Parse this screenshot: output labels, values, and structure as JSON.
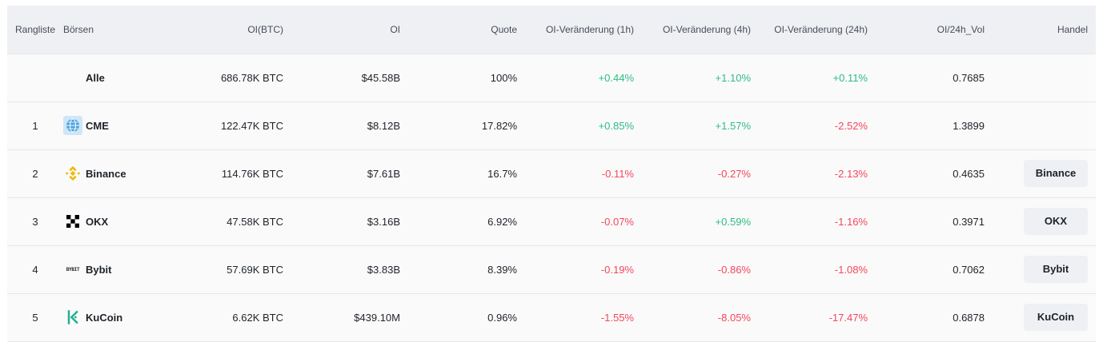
{
  "headers": {
    "rank": "Rangliste",
    "exchange": "Börsen",
    "oi_btc": "OI(BTC)",
    "oi": "OI",
    "share": "Quote",
    "chg_1h": "OI-Veränderung (1h)",
    "chg_4h": "OI-Veränderung (4h)",
    "chg_24h": "OI-Veränderung (24h)",
    "oi_vol": "OI/24h_Vol",
    "trade": "Handel"
  },
  "rows": [
    {
      "rank": "",
      "name": "Alle",
      "oi_btc": "686.78K BTC",
      "oi": "$45.58B",
      "share": "100%",
      "chg_1h": "+0.44%",
      "chg_4h": "+1.10%",
      "chg_24h": "+0.11%",
      "oi_vol": "0.7685",
      "trade": ""
    },
    {
      "rank": "1",
      "name": "CME",
      "icon": "cme-globe-icon",
      "oi_btc": "122.47K BTC",
      "oi": "$8.12B",
      "share": "17.82%",
      "chg_1h": "+0.85%",
      "chg_4h": "+1.57%",
      "chg_24h": "-2.52%",
      "oi_vol": "1.3899",
      "trade": ""
    },
    {
      "rank": "2",
      "name": "Binance",
      "icon": "binance-logo-icon",
      "oi_btc": "114.76K BTC",
      "oi": "$7.61B",
      "share": "16.7%",
      "chg_1h": "-0.11%",
      "chg_4h": "-0.27%",
      "chg_24h": "-2.13%",
      "oi_vol": "0.4635",
      "trade": "Binance"
    },
    {
      "rank": "3",
      "name": "OKX",
      "icon": "okx-logo-icon",
      "oi_btc": "47.58K BTC",
      "oi": "$3.16B",
      "share": "6.92%",
      "chg_1h": "-0.07%",
      "chg_4h": "+0.59%",
      "chg_24h": "-1.16%",
      "oi_vol": "0.3971",
      "trade": "OKX"
    },
    {
      "rank": "4",
      "name": "Bybit",
      "icon": "bybit-logo-icon",
      "logo_text": "BYBIT",
      "oi_btc": "57.69K BTC",
      "oi": "$3.83B",
      "share": "8.39%",
      "chg_1h": "-0.19%",
      "chg_4h": "-0.86%",
      "chg_24h": "-1.08%",
      "oi_vol": "0.7062",
      "trade": "Bybit"
    },
    {
      "rank": "5",
      "name": "KuCoin",
      "icon": "kucoin-logo-icon",
      "oi_btc": "6.62K BTC",
      "oi": "$439.10M",
      "share": "0.96%",
      "chg_1h": "-1.55%",
      "chg_4h": "-8.05%",
      "chg_24h": "-17.47%",
      "oi_vol": "0.6878",
      "trade": "KuCoin"
    }
  ],
  "colors": {
    "up": "#2ebd85",
    "down": "#f6465d",
    "binance": "#f0b90b",
    "kucoin": "#23af91",
    "cme": "#4aa3df"
  }
}
